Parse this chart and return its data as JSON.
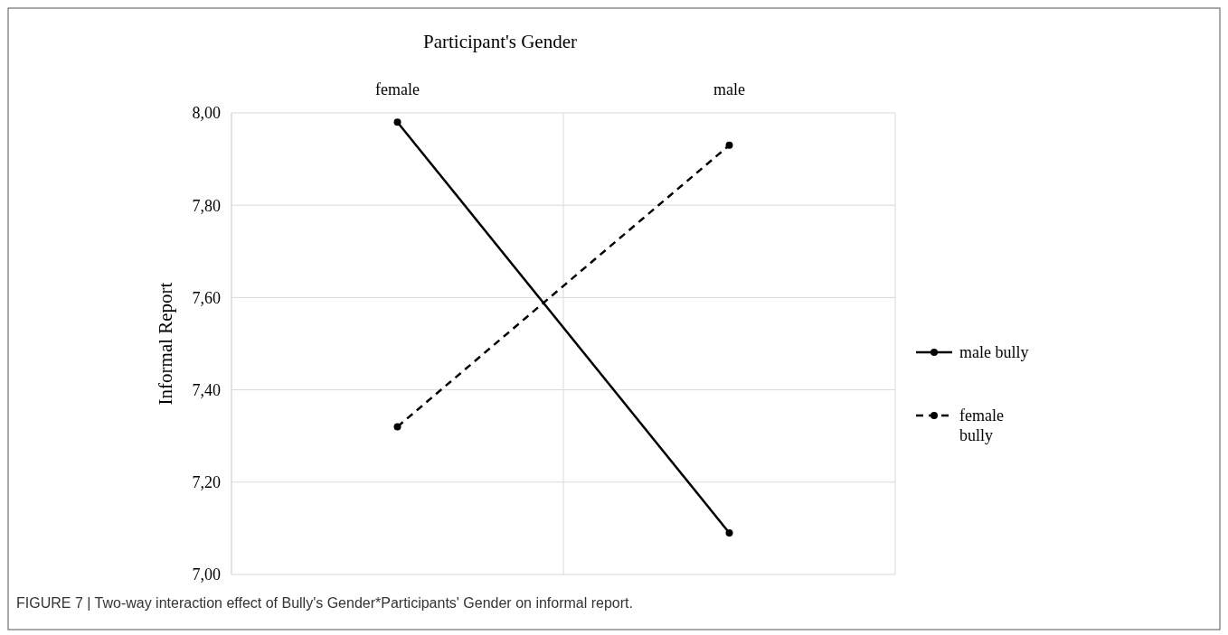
{
  "chart_data": {
    "type": "line",
    "xlabel": "Participant's Gender",
    "ylabel": "Informal Report",
    "categories": [
      "female",
      "male"
    ],
    "series": [
      {
        "name": "male bully",
        "color": "#000000",
        "values": [
          7.98,
          7.09
        ],
        "line_style": "solid"
      },
      {
        "name": "female bully",
        "color": "#000000",
        "values": [
          7.32,
          7.93
        ],
        "line_style": "dashed"
      }
    ],
    "ylim": [
      7,
      8
    ],
    "yticks": [
      {
        "value": 7,
        "label": "7,00"
      },
      {
        "value": 7.2,
        "label": "7,20"
      },
      {
        "value": 7.4,
        "label": "7,40"
      },
      {
        "value": 7.6,
        "label": "7,60"
      },
      {
        "value": 7.8,
        "label": "7,80"
      },
      {
        "value": 8,
        "label": "8,00"
      }
    ],
    "grid": true,
    "legend": "right",
    "marker": "circle",
    "annotations": [
      "FIGURE 7 | Two-way interaction effect of Bully's Gender*Participants' Gender on informal report."
    ]
  }
}
